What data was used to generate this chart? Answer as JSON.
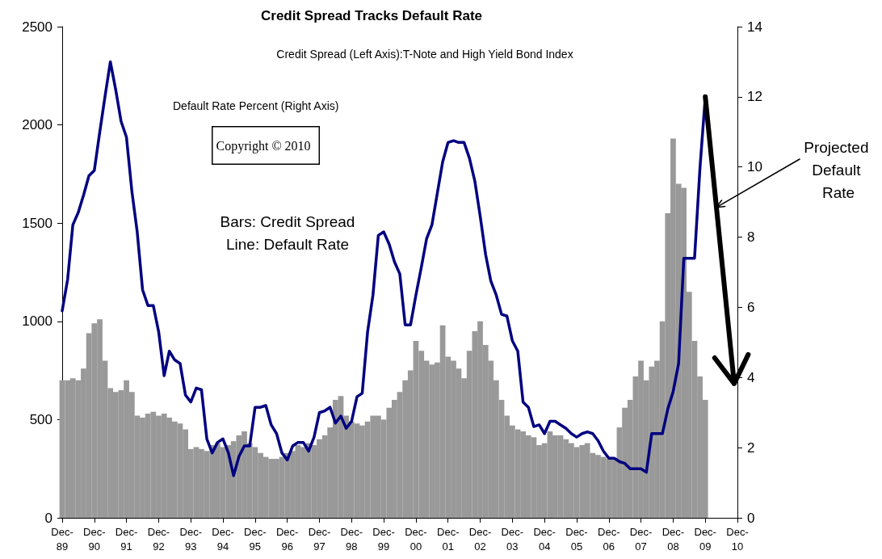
{
  "chart_data": {
    "type": "bar",
    "title": "Credit Spread Tracks Default Rate",
    "subtitle": "Credit Spread (Left Axis):T-Note and High Yield Bond Index",
    "annotations": [
      "Default Rate Percent (Right Axis)",
      "Copyright © 2010",
      "Bars: Credit Spread",
      "Line: Default Rate",
      "Projected Default Rate"
    ],
    "x": [
      "1989-12",
      "1990-02",
      "1990-04",
      "1990-06",
      "1990-08",
      "1990-10",
      "1990-12",
      "1991-02",
      "1991-04",
      "1991-06",
      "1991-08",
      "1991-10",
      "1991-12",
      "1992-02",
      "1992-04",
      "1992-06",
      "1992-08",
      "1992-10",
      "1992-12",
      "1993-02",
      "1993-04",
      "1993-06",
      "1993-08",
      "1993-10",
      "1993-12",
      "1994-02",
      "1994-04",
      "1994-06",
      "1994-08",
      "1994-10",
      "1994-12",
      "1995-02",
      "1995-04",
      "1995-06",
      "1995-08",
      "1995-10",
      "1995-12",
      "1996-02",
      "1996-04",
      "1996-06",
      "1996-08",
      "1996-10",
      "1996-12",
      "1997-02",
      "1997-04",
      "1997-06",
      "1997-08",
      "1997-10",
      "1997-12",
      "1998-02",
      "1998-04",
      "1998-06",
      "1998-08",
      "1998-10",
      "1998-12",
      "1999-02",
      "1999-04",
      "1999-06",
      "1999-08",
      "1999-10",
      "1999-12",
      "2000-02",
      "2000-04",
      "2000-06",
      "2000-08",
      "2000-10",
      "2000-12",
      "2001-02",
      "2001-04",
      "2001-06",
      "2001-08",
      "2001-10",
      "2001-12",
      "2002-02",
      "2002-04",
      "2002-06",
      "2002-08",
      "2002-10",
      "2002-12",
      "2003-02",
      "2003-04",
      "2003-06",
      "2003-08",
      "2003-10",
      "2003-12",
      "2004-02",
      "2004-04",
      "2004-06",
      "2004-08",
      "2004-10",
      "2004-12",
      "2005-02",
      "2005-04",
      "2005-06",
      "2005-08",
      "2005-10",
      "2005-12",
      "2006-02",
      "2006-04",
      "2006-06",
      "2006-08",
      "2006-10",
      "2006-12",
      "2007-02",
      "2007-04",
      "2007-06",
      "2007-08",
      "2007-10",
      "2007-12",
      "2008-02",
      "2008-04",
      "2008-06",
      "2008-08",
      "2008-10",
      "2008-12",
      "2009-02",
      "2009-04",
      "2009-06",
      "2009-08",
      "2009-10",
      "2009-12"
    ],
    "series": [
      {
        "color": "#999999",
        "values": [
          700,
          700,
          710,
          700,
          760,
          940,
          990,
          1010,
          800,
          660,
          640,
          650,
          700,
          640,
          520,
          510,
          530,
          540,
          520,
          530,
          510,
          490,
          480,
          450,
          350,
          360,
          350,
          340,
          370,
          380,
          360,
          370,
          390,
          420,
          440,
          380,
          360,
          330,
          310,
          300,
          300,
          310,
          330,
          340,
          370,
          360,
          380,
          370,
          400,
          420,
          460,
          600,
          620,
          520,
          490,
          480,
          470,
          490,
          520,
          520,
          500,
          560,
          600,
          640,
          700,
          750,
          900,
          850,
          800,
          780,
          790,
          980,
          820,
          800,
          760,
          710,
          850,
          950,
          1000,
          880,
          800,
          700,
          600,
          520,
          470,
          450,
          440,
          420,
          410,
          370,
          380,
          440,
          420,
          420,
          400,
          380,
          360,
          370,
          380,
          330,
          320,
          310,
          300,
          300,
          460,
          560,
          600,
          720,
          800,
          700,
          770,
          800,
          1000,
          1550,
          1930,
          1700,
          1680,
          1150,
          900,
          720,
          600
        ]
      },
      {
        "type": "line",
        "axis": "y2",
        "color": "#000080",
        "values": [
          5.9,
          6.8,
          8.35,
          8.7,
          9.2,
          9.75,
          9.9,
          11.0,
          12.0,
          13.0,
          12.2,
          11.3,
          10.85,
          9.3,
          8.15,
          6.5,
          6.05,
          6.05,
          5.3,
          4.05,
          4.75,
          4.5,
          4.4,
          3.5,
          3.3,
          3.7,
          3.65,
          2.25,
          1.85,
          2.15,
          2.25,
          1.85,
          1.2,
          1.75,
          2.05,
          2.05,
          3.15,
          3.15,
          3.2,
          2.65,
          2.4,
          1.85,
          1.65,
          2.05,
          2.15,
          2.15,
          1.9,
          2.3,
          3.0,
          3.05,
          3.15,
          2.7,
          2.9,
          2.55,
          2.75,
          3.45,
          3.55,
          5.3,
          6.35,
          8.05,
          8.15,
          7.8,
          7.3,
          6.95,
          5.5,
          5.5,
          6.35,
          7.15,
          7.95,
          8.35,
          9.25,
          10.15,
          10.7,
          10.75,
          10.7,
          10.7,
          10.25,
          9.6,
          8.6,
          7.5,
          6.75,
          6.35,
          5.8,
          5.75,
          5.05,
          4.75,
          3.3,
          3.15,
          2.6,
          2.65,
          2.4,
          2.75,
          2.75,
          2.65,
          2.55,
          2.4,
          2.3,
          2.4,
          2.45,
          2.4,
          2.2,
          1.9,
          1.7,
          1.7,
          1.6,
          1.55,
          1.4,
          1.4,
          1.4,
          1.3,
          2.4,
          2.4,
          2.4,
          3.1,
          3.6,
          4.4,
          7.4,
          7.4,
          7.4,
          9.95,
          12.0
        ]
      }
    ],
    "xlim": [
      "1989-12",
      "2010-12"
    ],
    "xticks": [
      {
        "value": "1989-12",
        "label": "Dec-89"
      },
      {
        "value": "1990-12",
        "label": "Dec-90"
      },
      {
        "value": "1991-12",
        "label": "Dec-91"
      },
      {
        "value": "1992-12",
        "label": "Dec-92"
      },
      {
        "value": "1993-12",
        "label": "Dec-93"
      },
      {
        "value": "1994-12",
        "label": "Dec-94"
      },
      {
        "value": "1995-12",
        "label": "Dec-95"
      },
      {
        "value": "1996-12",
        "label": "Dec-96"
      },
      {
        "value": "1997-12",
        "label": "Dec-97"
      },
      {
        "value": "1998-12",
        "label": "Dec-98"
      },
      {
        "value": "1999-12",
        "label": "Dec-99"
      },
      {
        "value": "2000-12",
        "label": "Dec-00"
      },
      {
        "value": "2001-12",
        "label": "Dec-01"
      },
      {
        "value": "2002-12",
        "label": "Dec-02"
      },
      {
        "value": "2003-12",
        "label": "Dec-03"
      },
      {
        "value": "2004-12",
        "label": "Dec-04"
      },
      {
        "value": "2005-12",
        "label": "Dec-05"
      },
      {
        "value": "2006-12",
        "label": "Dec-06"
      },
      {
        "value": "2007-12",
        "label": "Dec-07"
      },
      {
        "value": "2008-12",
        "label": "Dec-08"
      },
      {
        "value": "2009-12",
        "label": "Dec-09"
      },
      {
        "value": "2010-12",
        "label": "Dec-10"
      }
    ],
    "ylim": [
      0,
      2500
    ],
    "yticks": [
      0,
      500,
      1000,
      1500,
      2000,
      2500
    ],
    "y2lim": [
      0,
      14
    ],
    "y2ticks": [
      0,
      2,
      4,
      6,
      8,
      10,
      12,
      14
    ],
    "grid": false,
    "marker": "none",
    "line_style": "solid"
  }
}
